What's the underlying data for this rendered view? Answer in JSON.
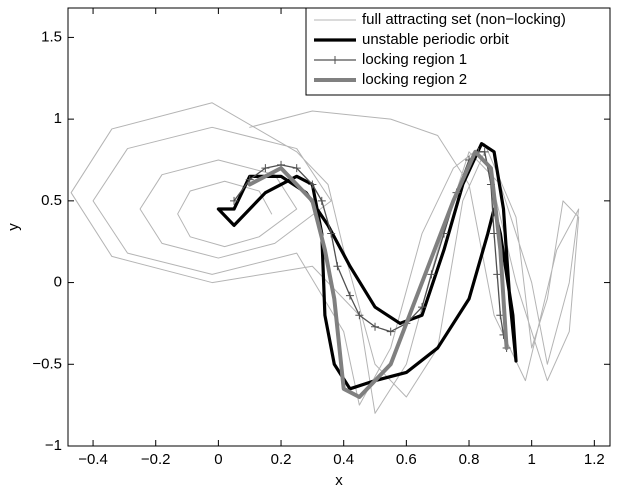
{
  "chart_data": {
    "type": "line",
    "x_label": "x",
    "y_label": "y",
    "xlim": [
      -0.48,
      1.25
    ],
    "ylim": [
      -1,
      1.68
    ],
    "xticks": [
      {
        "value": -0.4,
        "label": "−0.4"
      },
      {
        "value": -0.2,
        "label": "−0.2"
      },
      0,
      0.2,
      0.4,
      0.6,
      0.8,
      1,
      1.2
    ],
    "yticks": [
      {
        "value": -1,
        "label": "−1"
      },
      {
        "value": -0.5,
        "label": "−0.5"
      },
      0,
      0.5,
      1,
      1.5
    ],
    "legend": "upper right",
    "series": [
      {
        "name": "full attracting set (non−locking)",
        "color": "#b4b4b4",
        "x": [
          0.17,
          0.13,
          0.02,
          -0.09,
          -0.13,
          -0.09,
          0.02,
          0.13,
          0.25,
          0.18,
          0.0,
          -0.18,
          -0.25,
          -0.18,
          0.0,
          0.18,
          0.36,
          0.25,
          -0.02,
          -0.29,
          -0.4,
          -0.29,
          -0.02,
          0.25,
          0.4,
          0.45,
          0.55,
          0.65,
          0.75,
          0.85,
          0.95,
          1.0,
          1.05,
          1.1,
          1.15,
          1.12,
          1.05,
          0.95,
          0.85,
          0.78,
          0.7,
          0.6,
          0.5,
          0.4,
          0.35,
          0.25,
          -0.02,
          -0.34,
          -0.47,
          -0.34,
          -0.02,
          0.3,
          0.45,
          0.5,
          0.6,
          0.7,
          0.8,
          0.9,
          1.0,
          1.05,
          1.12,
          1.15,
          1.08,
          0.98,
          0.88,
          0.8,
          0.7,
          0.55,
          0.3,
          0.1
        ],
        "y": [
          0.42,
          0.56,
          0.62,
          0.56,
          0.42,
          0.28,
          0.22,
          0.28,
          0.45,
          0.66,
          0.75,
          0.66,
          0.45,
          0.24,
          0.15,
          0.24,
          0.5,
          0.82,
          0.95,
          0.82,
          0.5,
          0.18,
          0.05,
          0.18,
          -0.3,
          -0.75,
          -0.4,
          0.3,
          0.7,
          0.85,
          0.4,
          -0.4,
          -0.1,
          0.5,
          0.4,
          -0.3,
          -0.6,
          0.0,
          0.8,
          0.5,
          -0.4,
          -0.7,
          -0.5,
          0.2,
          0.6,
          0.8,
          1.1,
          0.94,
          0.55,
          0.16,
          0.0,
          0.1,
          -0.2,
          -0.8,
          -0.5,
          0.2,
          0.8,
          0.6,
          0.0,
          -0.5,
          0.0,
          0.45,
          0.2,
          -0.6,
          -0.2,
          0.6,
          0.9,
          1.0,
          1.05,
          0.95
        ]
      },
      {
        "name": "unstable periodic orbit",
        "color": "#000000",
        "x": [
          0.05,
          0.1,
          0.2,
          0.28,
          0.35,
          0.42,
          0.5,
          0.58,
          0.65,
          0.72,
          0.78,
          0.84,
          0.88,
          0.91,
          0.93,
          0.95,
          0.94,
          0.9,
          0.88,
          0.86,
          0.8,
          0.7,
          0.6,
          0.5,
          0.42,
          0.37,
          0.34,
          0.33,
          0.3,
          0.25,
          0.15,
          0.05,
          0.0,
          0.05
        ],
        "y": [
          0.45,
          0.65,
          0.65,
          0.55,
          0.35,
          0.1,
          -0.15,
          -0.25,
          -0.2,
          0.2,
          0.6,
          0.85,
          0.8,
          0.45,
          -0.1,
          -0.48,
          -0.2,
          0.3,
          0.45,
          0.3,
          -0.1,
          -0.4,
          -0.55,
          -0.6,
          -0.65,
          -0.5,
          -0.2,
          0.3,
          0.6,
          0.65,
          0.55,
          0.35,
          0.45,
          0.45
        ]
      },
      {
        "name": "locking region 1",
        "color": "#505050",
        "marker": "+",
        "x": [
          0.05,
          0.1,
          0.15,
          0.2,
          0.25,
          0.3,
          0.33,
          0.36,
          0.38,
          0.42,
          0.45,
          0.5,
          0.55,
          0.6,
          0.65,
          0.68,
          0.72,
          0.76,
          0.8,
          0.83,
          0.85,
          0.87,
          0.88,
          0.89,
          0.9,
          0.91,
          0.92
        ],
        "y": [
          0.5,
          0.63,
          0.7,
          0.72,
          0.7,
          0.6,
          0.5,
          0.3,
          0.1,
          -0.08,
          -0.2,
          -0.27,
          -0.3,
          -0.25,
          -0.15,
          0.05,
          0.3,
          0.55,
          0.75,
          0.8,
          0.8,
          0.6,
          0.3,
          0.05,
          -0.2,
          -0.32,
          -0.4
        ]
      },
      {
        "name": "locking region 2",
        "color": "#808080",
        "x": [
          0.1,
          0.2,
          0.3,
          0.34,
          0.37,
          0.4,
          0.45,
          0.55,
          0.65,
          0.75,
          0.82,
          0.87,
          0.9,
          0.92
        ],
        "y": [
          0.6,
          0.7,
          0.5,
          0.2,
          -0.1,
          -0.65,
          -0.7,
          -0.5,
          0.0,
          0.5,
          0.8,
          0.7,
          0.2,
          -0.4
        ]
      }
    ]
  }
}
